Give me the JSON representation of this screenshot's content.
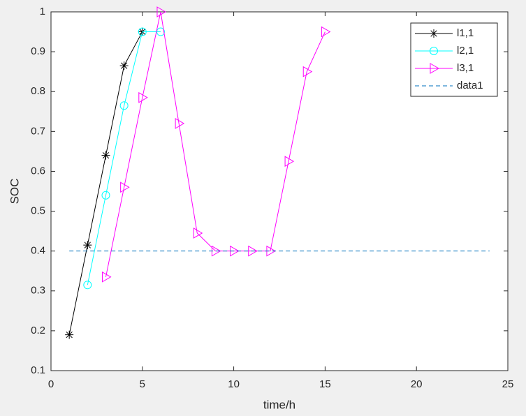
{
  "chart_data": {
    "type": "line",
    "xlabel": "time/h",
    "ylabel": "SOC",
    "xlim": [
      0,
      25
    ],
    "xticks": [
      0,
      5,
      10,
      15,
      20,
      25
    ],
    "ylim": [
      0.1,
      1
    ],
    "yticks": [
      0.1,
      0.2,
      0.3,
      0.4,
      0.5,
      0.6,
      0.7,
      0.8,
      0.9,
      1
    ],
    "legend": "northeast",
    "series": [
      {
        "name": "l1,1",
        "color": "#000000",
        "marker": "*",
        "linestyle": "-",
        "x": [
          1,
          2,
          3,
          4,
          5
        ],
        "values": [
          0.19,
          0.415,
          0.64,
          0.865,
          0.95
        ]
      },
      {
        "name": "l2,1",
        "color": "#00ffff",
        "marker": "o",
        "linestyle": "-",
        "x": [
          2,
          3,
          4,
          5,
          6
        ],
        "values": [
          0.315,
          0.54,
          0.765,
          0.95,
          0.95
        ]
      },
      {
        "name": "l3,1",
        "color": "#ff00ff",
        "marker": ">",
        "linestyle": "-",
        "x": [
          3,
          4,
          5,
          6,
          7,
          8,
          9,
          10,
          11,
          12,
          13,
          14,
          15
        ],
        "values": [
          0.335,
          0.56,
          0.785,
          1,
          0.72,
          0.445,
          0.4,
          0.4,
          0.4,
          0.4,
          0.625,
          0.85,
          0.95
        ]
      },
      {
        "name": "data1",
        "color": "#0072bd",
        "marker": "none",
        "linestyle": "--",
        "x": [
          1,
          24
        ],
        "values": [
          0.4,
          0.4
        ]
      }
    ]
  }
}
